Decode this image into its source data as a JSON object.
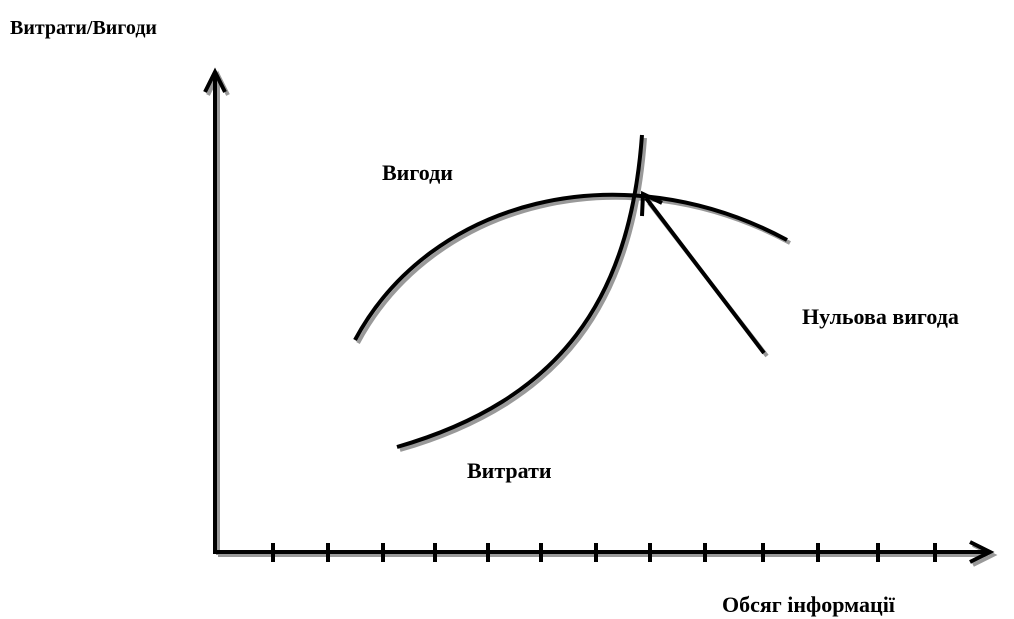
{
  "axes": {
    "y_label": "Витрати/Вигоди",
    "x_label": "Обсяг інформації"
  },
  "labels": {
    "benefits": "Вигоди",
    "costs": "Витрати",
    "zero_benefit": "Нульова вигода"
  }
}
